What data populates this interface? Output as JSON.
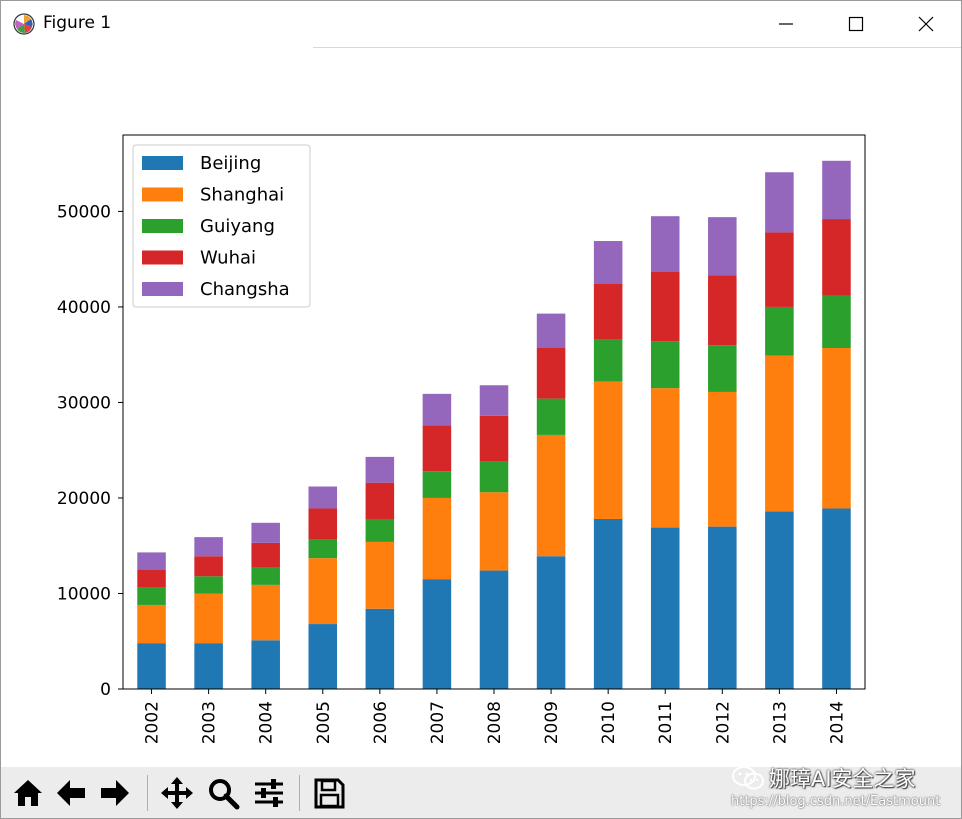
{
  "window": {
    "title": "Figure 1"
  },
  "toolbar": {
    "buttons": [
      {
        "name": "home-button",
        "icon": "home-icon"
      },
      {
        "name": "back-button",
        "icon": "arrow-left-icon"
      },
      {
        "name": "forward-button",
        "icon": "arrow-right-icon"
      },
      {
        "name": "pan-button",
        "icon": "move-icon"
      },
      {
        "name": "zoom-button",
        "icon": "magnifier-icon"
      },
      {
        "name": "configure-subplots-button",
        "icon": "sliders-icon"
      },
      {
        "name": "save-button",
        "icon": "floppy-disk-icon"
      }
    ]
  },
  "watermark": {
    "title": "娜璋AI安全之家",
    "url": "https://blog.csdn.net/Eastmount"
  },
  "chart_data": {
    "type": "bar",
    "stacked": true,
    "categories": [
      "2002",
      "2003",
      "2004",
      "2005",
      "2006",
      "2007",
      "2008",
      "2009",
      "2010",
      "2011",
      "2012",
      "2013",
      "2014"
    ],
    "series": [
      {
        "name": "Beijing",
        "color": "#1f77b4",
        "values": [
          4800,
          4800,
          5100,
          6800,
          8400,
          11500,
          12400,
          13900,
          17800,
          16900,
          17000,
          18600,
          18900
        ]
      },
      {
        "name": "Shanghai",
        "color": "#ff7f0e",
        "values": [
          4000,
          5200,
          5800,
          6900,
          7000,
          8500,
          8200,
          12700,
          14400,
          14600,
          14100,
          16300,
          16800
        ]
      },
      {
        "name": "Guiyang",
        "color": "#2ca02c",
        "values": [
          1800,
          1800,
          1800,
          2000,
          2400,
          2800,
          3200,
          3800,
          4400,
          4900,
          4900,
          5100,
          5500
        ]
      },
      {
        "name": "Wuhai",
        "color": "#d62728",
        "values": [
          1900,
          2100,
          2600,
          3200,
          3800,
          4800,
          4800,
          5300,
          5800,
          7300,
          7300,
          7800,
          8000
        ]
      },
      {
        "name": "Changsha",
        "color": "#9467bd",
        "values": [
          1800,
          2000,
          2100,
          2300,
          2700,
          3300,
          3200,
          3600,
          4500,
          5800,
          6100,
          6300,
          6100
        ]
      }
    ],
    "yticks": [
      0,
      10000,
      20000,
      30000,
      40000,
      50000
    ],
    "ylim": [
      0,
      58000
    ],
    "legend": "upper-left",
    "grid": false
  }
}
